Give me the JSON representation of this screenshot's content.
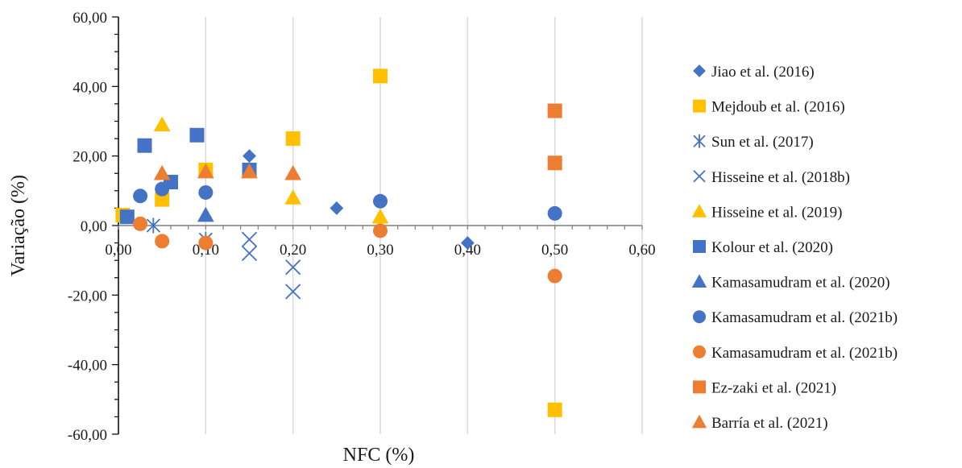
{
  "chart_data": {
    "type": "scatter",
    "title": "",
    "xlabel": "NFC (%)",
    "ylabel": "Variação (%)",
    "xlim": [
      0,
      0.6
    ],
    "ylim": [
      -60,
      60
    ],
    "x_ticks": [
      0,
      0.1,
      0.2,
      0.3,
      0.4,
      0.5,
      0.6
    ],
    "y_ticks": [
      -60,
      -40,
      -20,
      0,
      20,
      40,
      60
    ],
    "x_tick_labels": [
      "0,00",
      "0,10",
      "0,20",
      "0,30",
      "0,40",
      "0,50",
      "0,60"
    ],
    "y_tick_labels": [
      "-60,00",
      "-40,00",
      "-20,00",
      "0,00",
      "20,00",
      "40,00",
      "60,00"
    ],
    "grid": "vertical",
    "legend_position": "right",
    "series": [
      {
        "name": "Jiao et al. (2016)",
        "marker": "diamond",
        "color": "#4472C4",
        "points": [
          [
            0.15,
            20
          ],
          [
            0.25,
            5
          ],
          [
            0.4,
            -5
          ]
        ]
      },
      {
        "name": "Mejdoub et al. (2016)",
        "marker": "square",
        "color": "#FFC000",
        "points": [
          [
            0.005,
            3
          ],
          [
            0.05,
            7.5
          ],
          [
            0.1,
            16
          ],
          [
            0.2,
            25
          ],
          [
            0.3,
            43
          ],
          [
            0.5,
            -53
          ]
        ]
      },
      {
        "name": "Sun et al. (2017)",
        "marker": "asterisk",
        "color": "#4472C4",
        "points": [
          [
            0.04,
            0
          ],
          [
            0.1,
            -4
          ]
        ]
      },
      {
        "name": "Hisseine et al. (2018b)",
        "marker": "x",
        "color": "#4472C4",
        "points": [
          [
            0.15,
            -4
          ],
          [
            0.15,
            -8
          ],
          [
            0.2,
            -12
          ],
          [
            0.2,
            -19
          ]
        ]
      },
      {
        "name": "Hisseine et al. (2019)",
        "marker": "triangle",
        "color": "#FFC000",
        "points": [
          [
            0.05,
            29
          ],
          [
            0.2,
            8
          ],
          [
            0.3,
            2.5
          ]
        ]
      },
      {
        "name": "Kolour et al. (2020)",
        "marker": "square",
        "color": "#4472C4",
        "points": [
          [
            0.01,
            2.5
          ],
          [
            0.03,
            23
          ],
          [
            0.06,
            12.5
          ],
          [
            0.09,
            26
          ],
          [
            0.15,
            16
          ]
        ]
      },
      {
        "name": "Kamasamudram et al. (2020)",
        "marker": "triangle",
        "color": "#4472C4",
        "points": [
          [
            0.1,
            3
          ]
        ]
      },
      {
        "name": "Kamasamudram et al. (2021b)",
        "marker": "circle",
        "color": "#4472C4",
        "points": [
          [
            0.025,
            8.5
          ],
          [
            0.05,
            10.5
          ],
          [
            0.1,
            9.5
          ],
          [
            0.3,
            7
          ],
          [
            0.5,
            3.5
          ]
        ]
      },
      {
        "name": "Kamasamudram et al. (2021b)",
        "marker": "circle",
        "color": "#ED7D31",
        "points": [
          [
            0.025,
            0.5
          ],
          [
            0.05,
            -4.5
          ],
          [
            0.1,
            -5
          ],
          [
            0.3,
            -1.5
          ],
          [
            0.5,
            -14.5
          ]
        ]
      },
      {
        "name": "Ez-zaki et al. (2021)",
        "marker": "square",
        "color": "#ED7D31",
        "points": [
          [
            0.5,
            33
          ],
          [
            0.5,
            18
          ]
        ]
      },
      {
        "name": "Barría et al. (2021)",
        "marker": "triangle",
        "color": "#ED7D31",
        "points": [
          [
            0.05,
            15
          ],
          [
            0.1,
            15.5
          ],
          [
            0.15,
            15.5
          ],
          [
            0.2,
            15
          ]
        ]
      }
    ]
  }
}
